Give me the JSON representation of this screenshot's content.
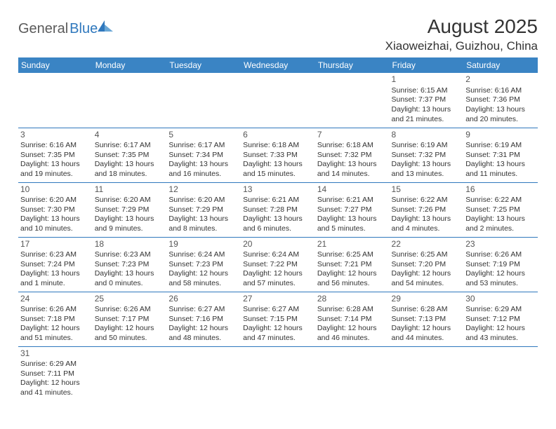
{
  "logo": {
    "part1": "General",
    "part2": "Blue"
  },
  "title": "August 2025",
  "location": "Xiaoweizhai, Guizhou, China",
  "colors": {
    "header_bg": "#3a84c4",
    "header_text": "#ffffff",
    "cell_border": "#2f78bd",
    "text": "#333333",
    "logo_gray": "#5a5a5a",
    "logo_blue": "#2f78bd"
  },
  "weekdays": [
    "Sunday",
    "Monday",
    "Tuesday",
    "Wednesday",
    "Thursday",
    "Friday",
    "Saturday"
  ],
  "weeks": [
    [
      null,
      null,
      null,
      null,
      null,
      {
        "n": "1",
        "sr": "Sunrise: 6:15 AM",
        "ss": "Sunset: 7:37 PM",
        "dl": "Daylight: 13 hours and 21 minutes."
      },
      {
        "n": "2",
        "sr": "Sunrise: 6:16 AM",
        "ss": "Sunset: 7:36 PM",
        "dl": "Daylight: 13 hours and 20 minutes."
      }
    ],
    [
      {
        "n": "3",
        "sr": "Sunrise: 6:16 AM",
        "ss": "Sunset: 7:35 PM",
        "dl": "Daylight: 13 hours and 19 minutes."
      },
      {
        "n": "4",
        "sr": "Sunrise: 6:17 AM",
        "ss": "Sunset: 7:35 PM",
        "dl": "Daylight: 13 hours and 18 minutes."
      },
      {
        "n": "5",
        "sr": "Sunrise: 6:17 AM",
        "ss": "Sunset: 7:34 PM",
        "dl": "Daylight: 13 hours and 16 minutes."
      },
      {
        "n": "6",
        "sr": "Sunrise: 6:18 AM",
        "ss": "Sunset: 7:33 PM",
        "dl": "Daylight: 13 hours and 15 minutes."
      },
      {
        "n": "7",
        "sr": "Sunrise: 6:18 AM",
        "ss": "Sunset: 7:32 PM",
        "dl": "Daylight: 13 hours and 14 minutes."
      },
      {
        "n": "8",
        "sr": "Sunrise: 6:19 AM",
        "ss": "Sunset: 7:32 PM",
        "dl": "Daylight: 13 hours and 13 minutes."
      },
      {
        "n": "9",
        "sr": "Sunrise: 6:19 AM",
        "ss": "Sunset: 7:31 PM",
        "dl": "Daylight: 13 hours and 11 minutes."
      }
    ],
    [
      {
        "n": "10",
        "sr": "Sunrise: 6:20 AM",
        "ss": "Sunset: 7:30 PM",
        "dl": "Daylight: 13 hours and 10 minutes."
      },
      {
        "n": "11",
        "sr": "Sunrise: 6:20 AM",
        "ss": "Sunset: 7:29 PM",
        "dl": "Daylight: 13 hours and 9 minutes."
      },
      {
        "n": "12",
        "sr": "Sunrise: 6:20 AM",
        "ss": "Sunset: 7:29 PM",
        "dl": "Daylight: 13 hours and 8 minutes."
      },
      {
        "n": "13",
        "sr": "Sunrise: 6:21 AM",
        "ss": "Sunset: 7:28 PM",
        "dl": "Daylight: 13 hours and 6 minutes."
      },
      {
        "n": "14",
        "sr": "Sunrise: 6:21 AM",
        "ss": "Sunset: 7:27 PM",
        "dl": "Daylight: 13 hours and 5 minutes."
      },
      {
        "n": "15",
        "sr": "Sunrise: 6:22 AM",
        "ss": "Sunset: 7:26 PM",
        "dl": "Daylight: 13 hours and 4 minutes."
      },
      {
        "n": "16",
        "sr": "Sunrise: 6:22 AM",
        "ss": "Sunset: 7:25 PM",
        "dl": "Daylight: 13 hours and 2 minutes."
      }
    ],
    [
      {
        "n": "17",
        "sr": "Sunrise: 6:23 AM",
        "ss": "Sunset: 7:24 PM",
        "dl": "Daylight: 13 hours and 1 minute."
      },
      {
        "n": "18",
        "sr": "Sunrise: 6:23 AM",
        "ss": "Sunset: 7:23 PM",
        "dl": "Daylight: 13 hours and 0 minutes."
      },
      {
        "n": "19",
        "sr": "Sunrise: 6:24 AM",
        "ss": "Sunset: 7:23 PM",
        "dl": "Daylight: 12 hours and 58 minutes."
      },
      {
        "n": "20",
        "sr": "Sunrise: 6:24 AM",
        "ss": "Sunset: 7:22 PM",
        "dl": "Daylight: 12 hours and 57 minutes."
      },
      {
        "n": "21",
        "sr": "Sunrise: 6:25 AM",
        "ss": "Sunset: 7:21 PM",
        "dl": "Daylight: 12 hours and 56 minutes."
      },
      {
        "n": "22",
        "sr": "Sunrise: 6:25 AM",
        "ss": "Sunset: 7:20 PM",
        "dl": "Daylight: 12 hours and 54 minutes."
      },
      {
        "n": "23",
        "sr": "Sunrise: 6:26 AM",
        "ss": "Sunset: 7:19 PM",
        "dl": "Daylight: 12 hours and 53 minutes."
      }
    ],
    [
      {
        "n": "24",
        "sr": "Sunrise: 6:26 AM",
        "ss": "Sunset: 7:18 PM",
        "dl": "Daylight: 12 hours and 51 minutes."
      },
      {
        "n": "25",
        "sr": "Sunrise: 6:26 AM",
        "ss": "Sunset: 7:17 PM",
        "dl": "Daylight: 12 hours and 50 minutes."
      },
      {
        "n": "26",
        "sr": "Sunrise: 6:27 AM",
        "ss": "Sunset: 7:16 PM",
        "dl": "Daylight: 12 hours and 48 minutes."
      },
      {
        "n": "27",
        "sr": "Sunrise: 6:27 AM",
        "ss": "Sunset: 7:15 PM",
        "dl": "Daylight: 12 hours and 47 minutes."
      },
      {
        "n": "28",
        "sr": "Sunrise: 6:28 AM",
        "ss": "Sunset: 7:14 PM",
        "dl": "Daylight: 12 hours and 46 minutes."
      },
      {
        "n": "29",
        "sr": "Sunrise: 6:28 AM",
        "ss": "Sunset: 7:13 PM",
        "dl": "Daylight: 12 hours and 44 minutes."
      },
      {
        "n": "30",
        "sr": "Sunrise: 6:29 AM",
        "ss": "Sunset: 7:12 PM",
        "dl": "Daylight: 12 hours and 43 minutes."
      }
    ],
    [
      {
        "n": "31",
        "sr": "Sunrise: 6:29 AM",
        "ss": "Sunset: 7:11 PM",
        "dl": "Daylight: 12 hours and 41 minutes."
      },
      null,
      null,
      null,
      null,
      null,
      null
    ]
  ]
}
